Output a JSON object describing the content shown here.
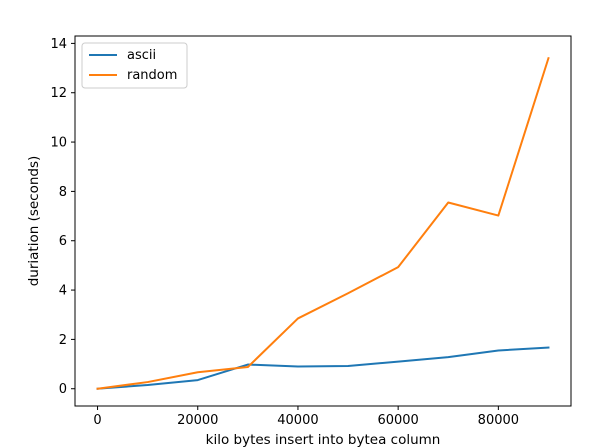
{
  "chart_data": {
    "type": "line",
    "xlabel": "kilo bytes insert into bytea column",
    "ylabel": "duriation (seconds)",
    "xlim": [
      -4500,
      94500
    ],
    "ylim": [
      -0.7,
      14.3
    ],
    "xticks": [
      0,
      20000,
      40000,
      60000,
      80000
    ],
    "yticks": [
      0,
      2,
      4,
      6,
      8,
      10,
      12,
      14
    ],
    "grid": false,
    "legend_position": "top-left",
    "series": [
      {
        "name": "ascii",
        "color": "#1f77b4",
        "x": [
          0,
          10000,
          20000,
          30000,
          40000,
          50000,
          60000,
          70000,
          80000,
          90000
        ],
        "y": [
          0.0,
          0.15,
          0.35,
          0.98,
          0.9,
          0.92,
          1.1,
          1.28,
          1.55,
          1.67
        ]
      },
      {
        "name": "random",
        "color": "#ff7f0e",
        "x": [
          0,
          10000,
          20000,
          30000,
          40000,
          50000,
          60000,
          70000,
          80000,
          90000
        ],
        "y": [
          0.0,
          0.27,
          0.67,
          0.88,
          2.85,
          3.87,
          4.93,
          7.55,
          7.02,
          13.4
        ]
      }
    ]
  }
}
